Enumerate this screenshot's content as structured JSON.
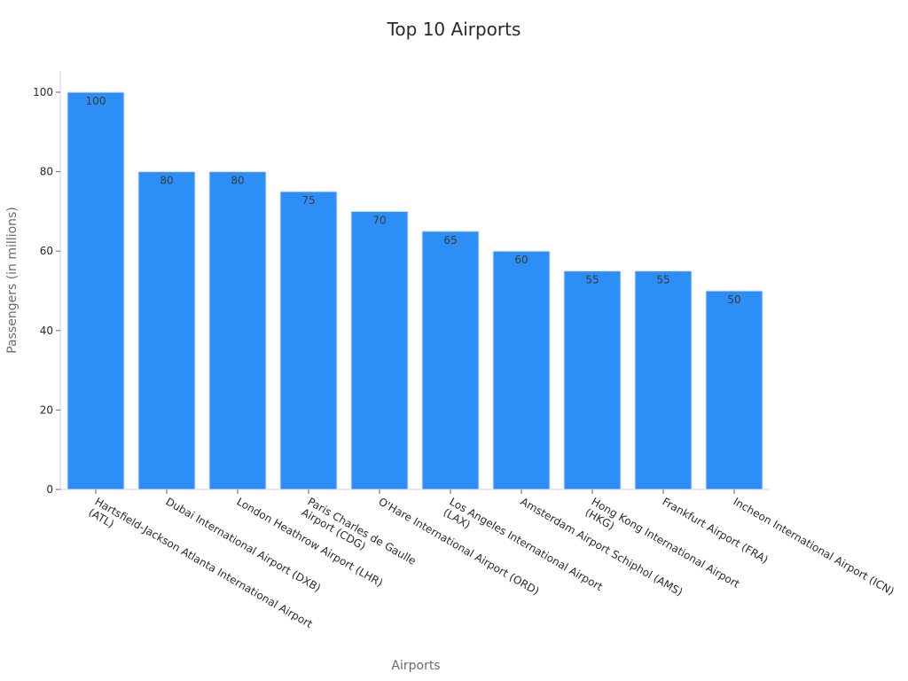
{
  "chart_data": {
    "type": "bar",
    "title": "Top 10 Airports",
    "xlabel": "Airports",
    "ylabel": "Passengers (in millions)",
    "ylim": [
      0,
      105
    ],
    "yticks": [
      0,
      20,
      40,
      60,
      80,
      100
    ],
    "grid": false,
    "bar_color": "#2d8ff5",
    "categories": [
      [
        "Hartsfield-Jackson Atlanta International Airport",
        "(ATL)"
      ],
      [
        "Dubai International Airport (DXB)"
      ],
      [
        "London Heathrow Airport (LHR)"
      ],
      [
        "Paris Charles de Gaulle",
        "Airport (CDG)"
      ],
      [
        "O'Hare International Airport (ORD)"
      ],
      [
        "Los Angeles International Airport",
        "(LAX)"
      ],
      [
        "Amsterdam Airport Schiphol (AMS)"
      ],
      [
        "Hong Kong International Airport",
        "(HKG)"
      ],
      [
        "Frankfurt Airport (FRA)"
      ],
      [
        "Incheon International Airport (ICN)"
      ]
    ],
    "values": [
      100,
      80,
      80,
      75,
      70,
      65,
      60,
      55,
      55,
      50
    ]
  }
}
